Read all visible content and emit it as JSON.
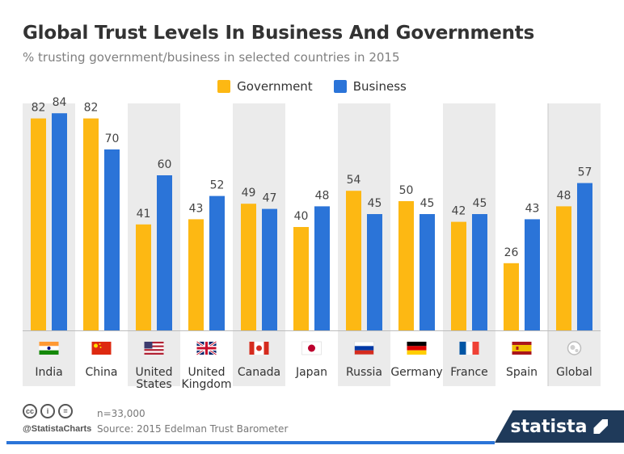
{
  "header": {
    "title": "Global Trust Levels In Business And Governments",
    "subtitle": "% trusting government/business in selected countries in 2015"
  },
  "colors": {
    "government": "#fdb813",
    "business": "#2b74d8",
    "band": "#ebebeb",
    "text": "#333333"
  },
  "chart_data": {
    "type": "bar",
    "categories": [
      "India",
      "China",
      "United States",
      "United Kingdom",
      "Canada",
      "Japan",
      "Russia",
      "Germany",
      "France",
      "Spain",
      "Global"
    ],
    "category_lines": [
      [
        "India"
      ],
      [
        "China"
      ],
      [
        "United",
        "States"
      ],
      [
        "United",
        "Kingdom"
      ],
      [
        "Canada"
      ],
      [
        "Japan"
      ],
      [
        "Russia"
      ],
      [
        "Germany"
      ],
      [
        "France"
      ],
      [
        "Spain"
      ],
      [
        "Global"
      ]
    ],
    "series": [
      {
        "name": "Government",
        "color": "#fdb813",
        "values": [
          82,
          82,
          41,
          43,
          49,
          40,
          54,
          50,
          42,
          26,
          48
        ]
      },
      {
        "name": "Business",
        "color": "#2b74d8",
        "values": [
          84,
          70,
          60,
          52,
          47,
          48,
          45,
          45,
          45,
          43,
          57
        ]
      }
    ],
    "flags": [
      "india-flag-icon",
      "china-flag-icon",
      "usa-flag-icon",
      "uk-flag-icon",
      "canada-flag-icon",
      "japan-flag-icon",
      "russia-flag-icon",
      "germany-flag-icon",
      "france-flag-icon",
      "spain-flag-icon",
      "globe-icon"
    ],
    "title": "Global Trust Levels In Business And Governments",
    "subtitle": "% trusting government/business in selected countries in 2015",
    "ylim": [
      0,
      100
    ],
    "legend_position": "top-center",
    "grid": false,
    "data_labels": true
  },
  "footer": {
    "sample": "n=33,000",
    "source": "Source: 2015 Edelman Trust Barometer",
    "handle": "@StatistaCharts",
    "brand": "statista",
    "license_icons": [
      "cc-icon",
      "attribution-icon",
      "no-derivatives-icon"
    ]
  }
}
